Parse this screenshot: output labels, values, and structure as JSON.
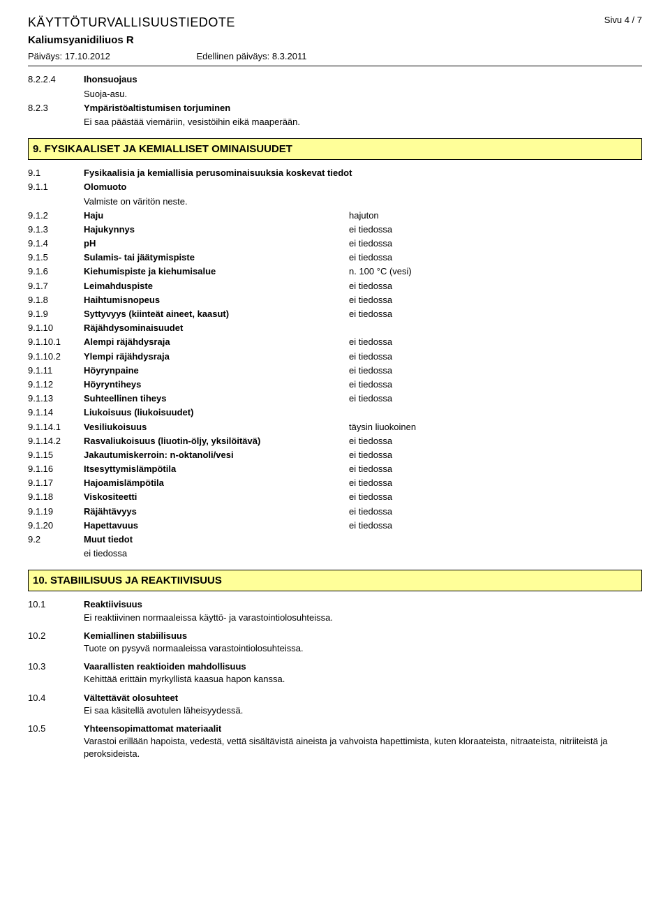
{
  "header": {
    "main_title": "KÄYTTÖTURVALLISUUSTIEDOTE",
    "page_num": "Sivu 4 / 7",
    "sub_title": "Kaliumsyanidiliuos R",
    "date_label": "Päiväys: 17.10.2012",
    "prev_date_label": "Edellinen päiväys: 8.3.2011"
  },
  "sec8": {
    "r1": {
      "num": "8.2.2.4",
      "label": "Ihonsuojaus",
      "text": "Suoja-asu."
    },
    "r2": {
      "num": "8.2.3",
      "label": "Ympäristöaltistumisen torjuminen",
      "text": "Ei saa päästää viemäriin, vesistöihin eikä maaperään."
    }
  },
  "sec9": {
    "title": "9. FYSIKAALISET JA KEMIALLISET OMINAISUUDET",
    "head1": {
      "num": "9.1",
      "label": "Fysikaalisia ja kemiallisia perusominaisuuksia koskevat tiedot"
    },
    "head2": {
      "num": "9.1.1",
      "label": "Olomuoto",
      "text": "Valmiste on väritön neste."
    },
    "rows": [
      {
        "num": "9.1.2",
        "label": "Haju",
        "val": "hajuton"
      },
      {
        "num": "9.1.3",
        "label": "Hajukynnys",
        "val": "ei tiedossa"
      },
      {
        "num": "9.1.4",
        "label": "pH",
        "val": "ei tiedossa"
      },
      {
        "num": "9.1.5",
        "label": "Sulamis- tai jäätymispiste",
        "val": "ei tiedossa"
      },
      {
        "num": "9.1.6",
        "label": "Kiehumispiste ja kiehumisalue",
        "val": "n. 100 °C (vesi)"
      },
      {
        "num": "9.1.7",
        "label": "Leimahduspiste",
        "val": "ei tiedossa"
      },
      {
        "num": "9.1.8",
        "label": "Haihtumisnopeus",
        "val": "ei tiedossa"
      },
      {
        "num": "9.1.9",
        "label": "Syttyvyys (kiinteät aineet, kaasut)",
        "val": "ei tiedossa"
      },
      {
        "num": "9.1.10",
        "label": "Räjähdysominaisuudet",
        "val": ""
      },
      {
        "num": "9.1.10.1",
        "label": "Alempi räjähdysraja",
        "val": "ei tiedossa"
      },
      {
        "num": "9.1.10.2",
        "label": "Ylempi räjähdysraja",
        "val": "ei tiedossa"
      },
      {
        "num": "9.1.11",
        "label": "Höyrynpaine",
        "val": "ei tiedossa"
      },
      {
        "num": "9.1.12",
        "label": "Höyryntiheys",
        "val": "ei tiedossa"
      },
      {
        "num": "9.1.13",
        "label": "Suhteellinen tiheys",
        "val": "ei tiedossa"
      },
      {
        "num": "9.1.14",
        "label": "Liukoisuus (liukoisuudet)",
        "val": ""
      },
      {
        "num": "9.1.14.1",
        "label": "Vesiliukoisuus",
        "val": "täysin liuokoinen"
      },
      {
        "num": "9.1.14.2",
        "label": "Rasvaliukoisuus (liuotin-öljy, yksilöitävä)",
        "val": "ei tiedossa"
      },
      {
        "num": "9.1.15",
        "label": "Jakautumiskerroin: n-oktanoli/vesi",
        "val": "ei tiedossa"
      },
      {
        "num": "9.1.16",
        "label": "Itsesyttymislämpötila",
        "val": "ei tiedossa"
      },
      {
        "num": "9.1.17",
        "label": "Hajoamislämpötila",
        "val": "ei tiedossa"
      },
      {
        "num": "9.1.18",
        "label": "Viskositeetti",
        "val": "ei tiedossa"
      },
      {
        "num": "9.1.19",
        "label": "Räjähtävyys",
        "val": "ei tiedossa"
      },
      {
        "num": "9.1.20",
        "label": "Hapettavuus",
        "val": "ei tiedossa"
      }
    ],
    "muut": {
      "num": "9.2",
      "label": "Muut tiedot",
      "text": "ei tiedossa"
    }
  },
  "sec10": {
    "title": "10. STABIILISUUS JA REAKTIIVISUUS",
    "items": [
      {
        "num": "10.1",
        "label": "Reaktiivisuus",
        "text": "Ei reaktiivinen normaaleissa käyttö- ja varastointiolosuhteissa."
      },
      {
        "num": "10.2",
        "label": "Kemiallinen stabiilisuus",
        "text": "Tuote on pysyvä normaaleissa varastointiolosuhteissa."
      },
      {
        "num": "10.3",
        "label": "Vaarallisten reaktioiden mahdollisuus",
        "text": "Kehittää erittäin myrkyllistä kaasua hapon kanssa."
      },
      {
        "num": "10.4",
        "label": "Vältettävät olosuhteet",
        "text": "Ei saa käsitellä avotulen läheisyydessä."
      },
      {
        "num": "10.5",
        "label": "Yhteensopimattomat materiaalit",
        "text": "Varastoi erillään hapoista, vedestä, vettä sisältävistä aineista ja vahvoista hapettimista, kuten kloraateista, nitraateista, nitriiteistä ja peroksideista."
      }
    ]
  }
}
